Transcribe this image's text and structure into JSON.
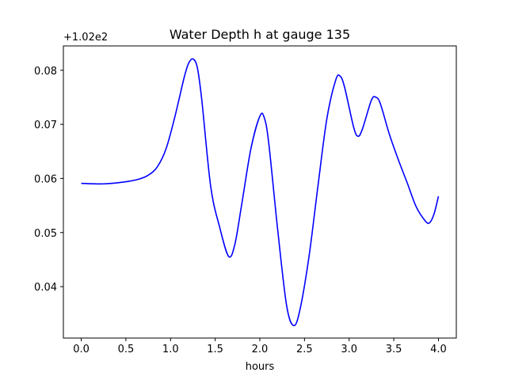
{
  "chart_data": {
    "type": "line",
    "title": "Water Depth h at gauge 135",
    "xlabel": "hours",
    "ylabel": "",
    "y_offset_label": "+1.02e2",
    "y_offset": 102,
    "xlim": [
      -0.2,
      4.2
    ],
    "ylim": [
      0.0305,
      0.0845
    ],
    "xticks": [
      0.0,
      0.5,
      1.0,
      1.5,
      2.0,
      2.5,
      3.0,
      3.5,
      4.0
    ],
    "xtick_labels": [
      "0.0",
      "0.5",
      "1.0",
      "1.5",
      "2.0",
      "2.5",
      "3.0",
      "3.5",
      "4.0"
    ],
    "yticks": [
      0.04,
      0.05,
      0.06,
      0.07,
      0.08
    ],
    "ytick_labels": [
      "0.04",
      "0.05",
      "0.06",
      "0.07",
      "0.08"
    ],
    "grid": false,
    "series_color": "#0000ff",
    "series": [
      {
        "name": "",
        "x": [
          0.0,
          0.25,
          0.5,
          0.65,
          0.75,
          0.85,
          0.95,
          1.05,
          1.15,
          1.2,
          1.25,
          1.3,
          1.35,
          1.45,
          1.55,
          1.65,
          1.72,
          1.8,
          1.9,
          2.0,
          2.05,
          2.1,
          2.2,
          2.3,
          2.38,
          2.45,
          2.55,
          2.65,
          2.75,
          2.85,
          2.9,
          2.95,
          3.05,
          3.1,
          3.15,
          3.25,
          3.3,
          3.35,
          3.45,
          3.55,
          3.65,
          3.75,
          3.85,
          3.9,
          3.95,
          4.0
        ],
        "y": [
          0.0591,
          0.059,
          0.0594,
          0.0599,
          0.0606,
          0.0621,
          0.0655,
          0.0715,
          0.0785,
          0.0812,
          0.0821,
          0.0805,
          0.0745,
          0.0585,
          0.051,
          0.0456,
          0.0478,
          0.0555,
          0.0655,
          0.0715,
          0.0712,
          0.0665,
          0.0505,
          0.0365,
          0.0328,
          0.0358,
          0.0455,
          0.0585,
          0.071,
          0.0782,
          0.0789,
          0.0768,
          0.0695,
          0.0678,
          0.0692,
          0.0745,
          0.075,
          0.0738,
          0.0682,
          0.0635,
          0.0592,
          0.0548,
          0.0522,
          0.0518,
          0.0534,
          0.0567
        ]
      }
    ]
  }
}
